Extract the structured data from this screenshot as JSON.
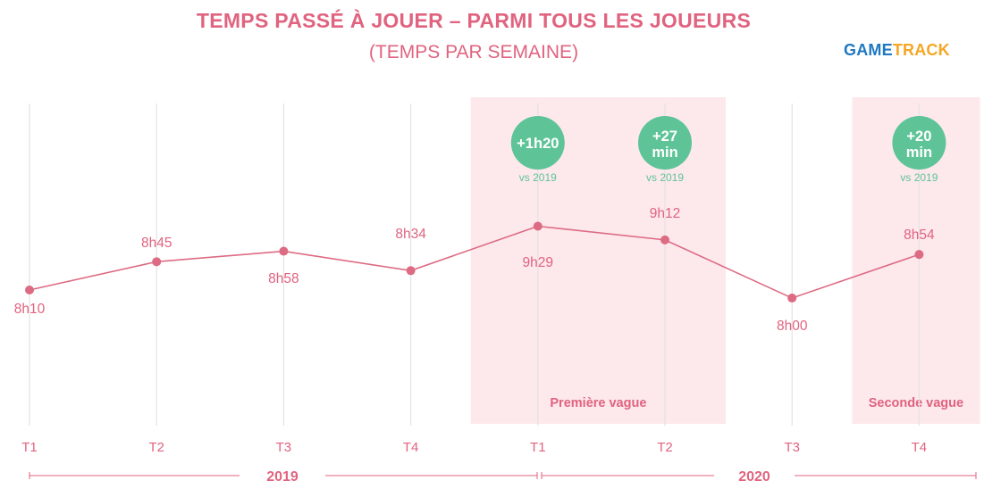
{
  "header": {
    "title": "TEMPS PASSÉ À JOUER – PARMI TOUS LES JOUEURS",
    "subtitle": "(TEMPS PAR SEMAINE)",
    "logo_part1": "GAME",
    "logo_part2": "TRACK"
  },
  "colors": {
    "accent": "#e0637f",
    "line": "#dd6b83",
    "badge": "#5ec497",
    "highlight": "#fde8ec",
    "grid": "#e3e3e3",
    "logo_blue": "#1f78c1",
    "logo_orange": "#f5a623"
  },
  "chart_data": {
    "type": "line",
    "categories": [
      "T1",
      "T2",
      "T3",
      "T4",
      "T1",
      "T2",
      "T3",
      "T4"
    ],
    "values": [
      490,
      525,
      538,
      514,
      569,
      552,
      480,
      534
    ],
    "value_labels": [
      "8h10",
      "8h45",
      "8h58",
      "8h34",
      "9h29",
      "9h12",
      "8h00",
      "8h54"
    ],
    "years": [
      {
        "label": "2019",
        "from": 0,
        "to": 3
      },
      {
        "label": "2020",
        "from": 4,
        "to": 7
      }
    ],
    "highlights": [
      {
        "label": "Première vague",
        "from": 4,
        "to": 5
      },
      {
        "label": "Seconde vague",
        "from": 7,
        "to": 7
      }
    ],
    "badges": [
      {
        "index": 4,
        "line1": "+1h20",
        "line2": "",
        "note": "vs 2019"
      },
      {
        "index": 5,
        "line1": "+27",
        "line2": "min",
        "note": "vs 2019"
      },
      {
        "index": 7,
        "line1": "+20",
        "line2": "min",
        "note": "vs 2019"
      }
    ],
    "grid": true,
    "legend": "none"
  }
}
